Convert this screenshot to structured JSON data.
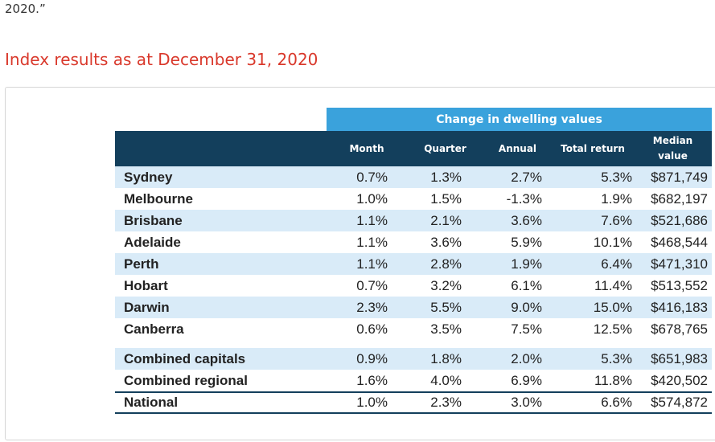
{
  "intro": {
    "quote_tail": "2020.”"
  },
  "heading": "Index results as at December 31, 2020",
  "table": {
    "band_title": "Change in dwelling values",
    "columns": {
      "month": "Month",
      "quarter": "Quarter",
      "annual": "Annual",
      "total_return": "Total return",
      "median_line1": "Median",
      "median_line2": "value"
    },
    "cities": [
      {
        "name": "Sydney",
        "month": "0.7%",
        "quarter": "1.3%",
        "annual": "2.7%",
        "total": "5.3%",
        "median": "$871,749"
      },
      {
        "name": "Melbourne",
        "month": "1.0%",
        "quarter": "1.5%",
        "annual": "-1.3%",
        "total": "1.9%",
        "median": "$682,197"
      },
      {
        "name": "Brisbane",
        "month": "1.1%",
        "quarter": "2.1%",
        "annual": "3.6%",
        "total": "7.6%",
        "median": "$521,686"
      },
      {
        "name": "Adelaide",
        "month": "1.1%",
        "quarter": "3.6%",
        "annual": "5.9%",
        "total": "10.1%",
        "median": "$468,544"
      },
      {
        "name": "Perth",
        "month": "1.1%",
        "quarter": "2.8%",
        "annual": "1.9%",
        "total": "6.4%",
        "median": "$471,310"
      },
      {
        "name": "Hobart",
        "month": "0.7%",
        "quarter": "3.2%",
        "annual": "6.1%",
        "total": "11.4%",
        "median": "$513,552"
      },
      {
        "name": "Darwin",
        "month": "2.3%",
        "quarter": "5.5%",
        "annual": "9.0%",
        "total": "15.0%",
        "median": "$416,183"
      },
      {
        "name": "Canberra",
        "month": "0.6%",
        "quarter": "3.5%",
        "annual": "7.5%",
        "total": "12.5%",
        "median": "$678,765"
      }
    ],
    "combined": [
      {
        "name": "Combined capitals",
        "month": "0.9%",
        "quarter": "1.8%",
        "annual": "2.0%",
        "total": "5.3%",
        "median": "$651,983"
      },
      {
        "name": "Combined regional",
        "month": "1.6%",
        "quarter": "4.0%",
        "annual": "6.9%",
        "total": "11.8%",
        "median": "$420,502"
      }
    ],
    "national": {
      "name": "National",
      "month": "1.0%",
      "quarter": "2.3%",
      "annual": "3.0%",
      "total": "6.6%",
      "median": "$574,872"
    }
  },
  "colors": {
    "heading": "#d9382b",
    "band": "#3aa2dc",
    "header": "#133f5c",
    "stripe": "#d9ebf8"
  }
}
